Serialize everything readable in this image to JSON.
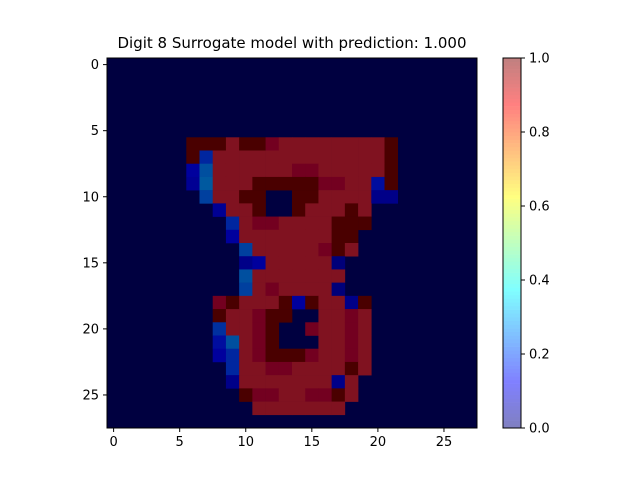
{
  "chart_data": {
    "type": "heatmap",
    "title": "Digit 8 Surrogate model with prediction: 1.000",
    "xlabel": "",
    "ylabel": "",
    "xlim": [
      -0.5,
      27.5
    ],
    "ylim": [
      27.5,
      -0.5
    ],
    "x_ticks": [
      0,
      5,
      10,
      15,
      20,
      25
    ],
    "y_ticks": [
      0,
      5,
      10,
      15,
      20,
      25
    ],
    "colorbar": {
      "colormap": "jet",
      "alpha": 0.5,
      "range": [
        0.0,
        1.0
      ],
      "ticks": [
        "0.0",
        "0.2",
        "0.4",
        "0.6",
        "0.8",
        "1.0"
      ]
    },
    "background_color": "#000040",
    "grid": false,
    "runs": [
      {
        "row": 6,
        "start": 6,
        "end": 21,
        "value": 1.0
      },
      {
        "row": 6,
        "start": 9,
        "end": 20,
        "value": 0.84
      },
      {
        "row": 7,
        "start": 6,
        "end": 21,
        "value": 1.0
      },
      {
        "row": 7,
        "start": 7,
        "end": 20,
        "value": 0.84
      },
      {
        "row": 8,
        "start": 6,
        "end": 21,
        "value": 1.0
      },
      {
        "row": 8,
        "start": 8,
        "end": 20,
        "value": 0.84
      },
      {
        "row": 9,
        "start": 8,
        "end": 20,
        "value": 0.84
      },
      {
        "row": 9,
        "start": 11,
        "end": 15,
        "value": 1.0
      },
      {
        "row": 10,
        "start": 8,
        "end": 19,
        "value": 0.84
      },
      {
        "row": 10,
        "start": 10,
        "end": 15,
        "value": 1.0
      },
      {
        "row": 10,
        "start": 12,
        "end": 13,
        "value": 0.0
      },
      {
        "row": 11,
        "start": 9,
        "end": 19,
        "value": 0.84
      },
      {
        "row": 11,
        "start": 11,
        "end": 14,
        "value": 1.0
      },
      {
        "row": 11,
        "start": 12,
        "end": 13,
        "value": 0.0
      },
      {
        "row": 12,
        "start": 9,
        "end": 19,
        "value": 0.84
      },
      {
        "row": 12,
        "start": 17,
        "end": 19,
        "value": 1.0
      },
      {
        "row": 13,
        "start": 10,
        "end": 18,
        "value": 0.84
      },
      {
        "row": 14,
        "start": 11,
        "end": 18,
        "value": 0.84
      },
      {
        "row": 15,
        "start": 11,
        "end": 17,
        "value": 0.84
      },
      {
        "row": 16,
        "start": 11,
        "end": 17,
        "value": 0.84
      },
      {
        "row": 17,
        "start": 11,
        "end": 17,
        "value": 0.84
      },
      {
        "row": 18,
        "start": 9,
        "end": 19,
        "value": 0.84
      },
      {
        "row": 18,
        "start": 13,
        "end": 15,
        "value": 1.0
      },
      {
        "row": 19,
        "start": 9,
        "end": 19,
        "value": 0.84
      },
      {
        "row": 19,
        "start": 12,
        "end": 13,
        "value": 1.0
      },
      {
        "row": 19,
        "start": 14,
        "end": 15,
        "value": 0.0
      },
      {
        "row": 20,
        "start": 9,
        "end": 19,
        "value": 0.84
      },
      {
        "row": 20,
        "start": 13,
        "end": 15,
        "value": 0.0
      },
      {
        "row": 21,
        "start": 9,
        "end": 19,
        "value": 0.84
      },
      {
        "row": 21,
        "start": 13,
        "end": 15,
        "value": 0.0
      },
      {
        "row": 22,
        "start": 9,
        "end": 19,
        "value": 0.84
      },
      {
        "row": 22,
        "start": 13,
        "end": 15,
        "value": 1.0
      },
      {
        "row": 23,
        "start": 9,
        "end": 19,
        "value": 0.84
      },
      {
        "row": 24,
        "start": 10,
        "end": 18,
        "value": 0.84
      },
      {
        "row": 25,
        "start": 10,
        "end": 18,
        "value": 0.84
      },
      {
        "row": 26,
        "start": 11,
        "end": 17,
        "value": 0.84
      }
    ],
    "cells": [
      {
        "row": 6,
        "col": 7,
        "value": 1.0
      },
      {
        "row": 6,
        "col": 8,
        "value": 1.0
      },
      {
        "row": 6,
        "col": 10,
        "value": 1.0
      },
      {
        "row": 6,
        "col": 11,
        "value": 1.0
      },
      {
        "row": 6,
        "col": 12,
        "value": 0.9
      },
      {
        "row": 7,
        "col": 7,
        "value": 0.2
      },
      {
        "row": 7,
        "col": 21,
        "value": 1.0
      },
      {
        "row": 8,
        "col": 6,
        "value": 0.12
      },
      {
        "row": 8,
        "col": 7,
        "value": 0.28
      },
      {
        "row": 8,
        "col": 14,
        "value": 0.9
      },
      {
        "row": 8,
        "col": 15,
        "value": 0.9
      },
      {
        "row": 8,
        "col": 21,
        "value": 1.0
      },
      {
        "row": 9,
        "col": 6,
        "value": 0.1
      },
      {
        "row": 9,
        "col": 7,
        "value": 0.3
      },
      {
        "row": 9,
        "col": 16,
        "value": 0.9
      },
      {
        "row": 9,
        "col": 17,
        "value": 0.9
      },
      {
        "row": 9,
        "col": 20,
        "value": 0.15
      },
      {
        "row": 9,
        "col": 21,
        "value": 1.0
      },
      {
        "row": 10,
        "col": 7,
        "value": 0.25
      },
      {
        "row": 10,
        "col": 20,
        "value": 0.08
      },
      {
        "row": 10,
        "col": 21,
        "value": 0.08
      },
      {
        "row": 11,
        "col": 8,
        "value": 0.1
      },
      {
        "row": 11,
        "col": 18,
        "value": 1.0
      },
      {
        "row": 12,
        "col": 9,
        "value": 0.2
      },
      {
        "row": 12,
        "col": 11,
        "value": 0.9
      },
      {
        "row": 12,
        "col": 12,
        "value": 0.9
      },
      {
        "row": 13,
        "col": 9,
        "value": 0.12
      },
      {
        "row": 13,
        "col": 17,
        "value": 1.0
      },
      {
        "row": 13,
        "col": 18,
        "value": 1.0
      },
      {
        "row": 14,
        "col": 10,
        "value": 0.25
      },
      {
        "row": 14,
        "col": 16,
        "value": 0.9
      },
      {
        "row": 14,
        "col": 17,
        "value": 1.0
      },
      {
        "row": 15,
        "col": 10,
        "value": 0.08
      },
      {
        "row": 15,
        "col": 11,
        "value": 0.12
      },
      {
        "row": 15,
        "col": 17,
        "value": 0.05
      },
      {
        "row": 16,
        "col": 10,
        "value": 0.28
      },
      {
        "row": 17,
        "col": 10,
        "value": 0.25
      },
      {
        "row": 17,
        "col": 12,
        "value": 0.9
      },
      {
        "row": 17,
        "col": 17,
        "value": 0.05
      },
      {
        "row": 18,
        "col": 8,
        "value": 0.9
      },
      {
        "row": 18,
        "col": 9,
        "value": 1.0
      },
      {
        "row": 18,
        "col": 14,
        "value": 0.12
      },
      {
        "row": 18,
        "col": 18,
        "value": 0.08
      },
      {
        "row": 18,
        "col": 19,
        "value": 1.0
      },
      {
        "row": 19,
        "col": 8,
        "value": 1.0
      },
      {
        "row": 19,
        "col": 11,
        "value": 0.9
      },
      {
        "row": 19,
        "col": 18,
        "value": 0.9
      },
      {
        "row": 20,
        "col": 8,
        "value": 0.22
      },
      {
        "row": 20,
        "col": 11,
        "value": 0.9
      },
      {
        "row": 20,
        "col": 12,
        "value": 1.0
      },
      {
        "row": 20,
        "col": 15,
        "value": 0.9
      },
      {
        "row": 20,
        "col": 18,
        "value": 0.9
      },
      {
        "row": 21,
        "col": 8,
        "value": 0.15
      },
      {
        "row": 21,
        "col": 9,
        "value": 0.28
      },
      {
        "row": 21,
        "col": 11,
        "value": 0.9
      },
      {
        "row": 21,
        "col": 12,
        "value": 1.0
      },
      {
        "row": 21,
        "col": 18,
        "value": 0.9
      },
      {
        "row": 22,
        "col": 8,
        "value": 0.12
      },
      {
        "row": 22,
        "col": 9,
        "value": 0.2
      },
      {
        "row": 22,
        "col": 11,
        "value": 0.9
      },
      {
        "row": 22,
        "col": 12,
        "value": 1.0
      },
      {
        "row": 22,
        "col": 15,
        "value": 0.9
      },
      {
        "row": 22,
        "col": 18,
        "value": 0.9
      },
      {
        "row": 23,
        "col": 9,
        "value": 0.2
      },
      {
        "row": 23,
        "col": 12,
        "value": 0.9
      },
      {
        "row": 23,
        "col": 13,
        "value": 0.9
      },
      {
        "row": 23,
        "col": 18,
        "value": 1.0
      },
      {
        "row": 24,
        "col": 9,
        "value": 0.08
      },
      {
        "row": 24,
        "col": 17,
        "value": 0.08
      },
      {
        "row": 25,
        "col": 10,
        "value": 1.0
      },
      {
        "row": 25,
        "col": 11,
        "value": 0.9
      },
      {
        "row": 25,
        "col": 12,
        "value": 0.9
      },
      {
        "row": 25,
        "col": 15,
        "value": 0.9
      },
      {
        "row": 25,
        "col": 16,
        "value": 0.9
      },
      {
        "row": 25,
        "col": 17,
        "value": 1.0
      }
    ]
  }
}
